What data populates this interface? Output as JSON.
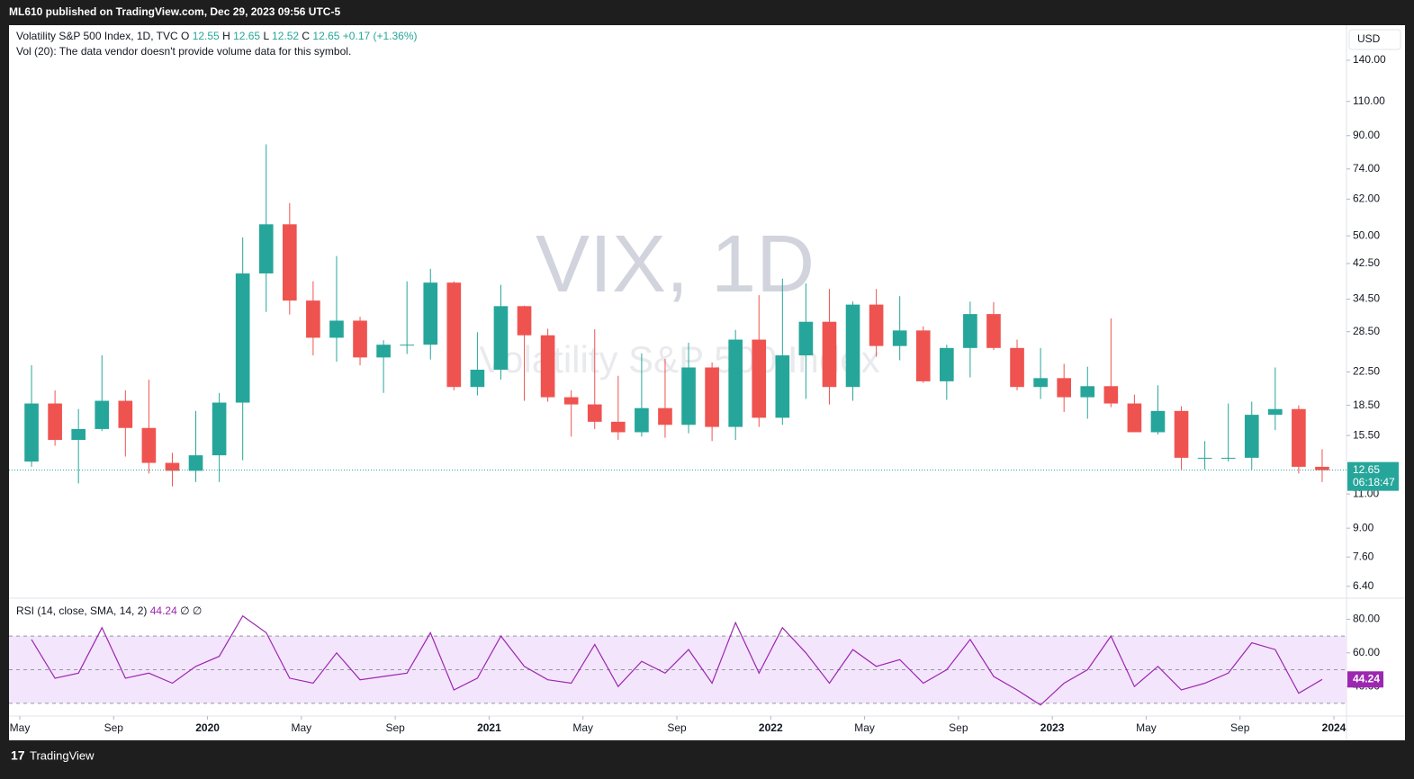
{
  "header": {
    "text": "ML610 published on TradingView.com, Dec 29, 2023 09:56 UTC-5"
  },
  "footer": {
    "brand": "TradingView"
  },
  "chart_data": [
    {
      "type": "candlestick",
      "title": "Volatility S&P 500 Index, 1D, TVC",
      "watermark": "VIX, 1D",
      "watermark_subtitle": "Volatility S&P 500 Index",
      "legend": {
        "o_label": "O",
        "open": 12.55,
        "h_label": "H",
        "high": 12.65,
        "l_label": "L",
        "low": 12.52,
        "c_label": "C",
        "close": 12.65,
        "change": "+0.17 (+1.36%)"
      },
      "note": "Vol (20): The data vendor doesn't provide volume data for this symbol.",
      "currency": "USD",
      "last_price": 12.65,
      "countdown": "06:18:47",
      "up_color": "#26a69a",
      "down_color": "#ef5350",
      "log_scale": true,
      "x": [
        "2019-05",
        "2019-06",
        "2019-07",
        "2019-08",
        "2019-09",
        "2019-10",
        "2019-11",
        "2019-12",
        "2020-01",
        "2020-02",
        "2020-03",
        "2020-04",
        "2020-05",
        "2020-06",
        "2020-07",
        "2020-08",
        "2020-09",
        "2020-10",
        "2020-11",
        "2020-12",
        "2021-01",
        "2021-02",
        "2021-03",
        "2021-04",
        "2021-05",
        "2021-06",
        "2021-07",
        "2021-08",
        "2021-09",
        "2021-10",
        "2021-11",
        "2021-12",
        "2022-01",
        "2022-02",
        "2022-03",
        "2022-04",
        "2022-05",
        "2022-06",
        "2022-07",
        "2022-08",
        "2022-09",
        "2022-10",
        "2022-11",
        "2022-12",
        "2023-01",
        "2023-02",
        "2023-03",
        "2023-04",
        "2023-05",
        "2023-06",
        "2023-07",
        "2023-08",
        "2023-09",
        "2023-10",
        "2023-11",
        "2023-12"
      ],
      "open": [
        13.3,
        18.7,
        15.1,
        16.1,
        19.0,
        16.2,
        13.2,
        12.6,
        13.8,
        18.8,
        40.1,
        53.5,
        34.2,
        27.5,
        30.4,
        24.5,
        26.4,
        26.4,
        38.0,
        20.6,
        22.8,
        33.1,
        27.9,
        19.4,
        18.6,
        16.8,
        15.8,
        18.2,
        16.5,
        23.1,
        16.3,
        27.2,
        17.2,
        24.8,
        30.2,
        20.6,
        33.4,
        26.2,
        28.7,
        21.3,
        25.9,
        31.6,
        25.9,
        20.6,
        21.7,
        19.4,
        20.7,
        18.7,
        15.8,
        17.9,
        13.6,
        13.6,
        13.6,
        17.5,
        18.1,
        12.9
      ],
      "high": [
        23.4,
        20.2,
        18.1,
        24.8,
        20.2,
        21.5,
        14.0,
        17.9,
        19.9,
        49.5,
        85.5,
        60.6,
        38.3,
        44.4,
        31.1,
        27.1,
        38.3,
        41.2,
        38.3,
        28.4,
        37.5,
        33.2,
        29.0,
        20.2,
        28.9,
        22.0,
        25.1,
        24.3,
        26.7,
        23.8,
        28.8,
        35.3,
        38.9,
        37.8,
        36.6,
        34.0,
        36.6,
        35.1,
        29.4,
        26.4,
        34.0,
        33.9,
        27.2,
        25.9,
        23.6,
        23.2,
        30.8,
        19.7,
        20.8,
        18.4,
        15.0,
        18.7,
        18.9,
        23.1,
        18.5,
        14.3
      ],
      "low": [
        12.9,
        14.6,
        11.7,
        15.9,
        13.7,
        12.4,
        11.5,
        11.8,
        11.8,
        13.4,
        32.0,
        31.5,
        24.8,
        23.9,
        23.4,
        19.9,
        25.0,
        24.2,
        20.2,
        19.6,
        21.5,
        19.0,
        18.9,
        15.4,
        16.1,
        15.1,
        15.4,
        15.3,
        15.7,
        15.0,
        15.1,
        16.3,
        16.5,
        19.2,
        18.6,
        19.0,
        24.6,
        24.1,
        21.1,
        19.1,
        21.8,
        25.6,
        20.2,
        19.2,
        17.8,
        17.1,
        18.3,
        15.8,
        15.6,
        12.7,
        12.7,
        13.3,
        12.7,
        16.0,
        12.4,
        11.8
      ],
      "close": [
        18.7,
        15.1,
        16.1,
        19.0,
        16.2,
        13.2,
        12.6,
        13.8,
        18.8,
        40.1,
        53.5,
        34.2,
        27.5,
        30.4,
        24.5,
        26.4,
        26.4,
        38.0,
        20.6,
        22.8,
        33.1,
        27.9,
        19.4,
        18.6,
        16.8,
        15.8,
        18.2,
        16.5,
        23.1,
        16.3,
        27.2,
        17.2,
        24.8,
        30.2,
        20.6,
        33.4,
        26.2,
        28.7,
        21.3,
        25.9,
        31.6,
        25.9,
        20.6,
        21.7,
        19.4,
        20.7,
        18.7,
        15.8,
        17.9,
        13.6,
        13.6,
        13.6,
        17.5,
        18.1,
        12.9,
        12.65
      ],
      "ylim": [
        6,
        172
      ],
      "yticks": [
        {
          "value": 140,
          "label": "140.00"
        },
        {
          "value": 110,
          "label": "110.00"
        },
        {
          "value": 90,
          "label": "90.00"
        },
        {
          "value": 74,
          "label": "74.00"
        },
        {
          "value": 62,
          "label": "62.00"
        },
        {
          "value": 50,
          "label": "50.00"
        },
        {
          "value": 42.5,
          "label": "42.50"
        },
        {
          "value": 34.5,
          "label": "34.50"
        },
        {
          "value": 28.5,
          "label": "28.50"
        },
        {
          "value": 22.5,
          "label": "22.50"
        },
        {
          "value": 18.5,
          "label": "18.50"
        },
        {
          "value": 15.5,
          "label": "15.50"
        },
        {
          "value": 11,
          "label": "11.00"
        },
        {
          "value": 9,
          "label": "9.00"
        },
        {
          "value": 7.6,
          "label": "7.60"
        },
        {
          "value": 6.4,
          "label": "6.40"
        }
      ],
      "xlim": [
        "2019-05",
        "2024-01"
      ],
      "xticks": [
        {
          "value": "2019-05",
          "label": "May"
        },
        {
          "value": "2019-09",
          "label": "Sep"
        },
        {
          "value": "2020-01",
          "label": "2020"
        },
        {
          "value": "2020-05",
          "label": "May"
        },
        {
          "value": "2020-09",
          "label": "Sep"
        },
        {
          "value": "2021-01",
          "label": "2021"
        },
        {
          "value": "2021-05",
          "label": "May"
        },
        {
          "value": "2021-09",
          "label": "Sep"
        },
        {
          "value": "2022-01",
          "label": "2022"
        },
        {
          "value": "2022-05",
          "label": "May"
        },
        {
          "value": "2022-09",
          "label": "Sep"
        },
        {
          "value": "2023-01",
          "label": "2023"
        },
        {
          "value": "2023-05",
          "label": "May"
        },
        {
          "value": "2023-09",
          "label": "Sep"
        },
        {
          "value": "2024-01",
          "label": "2024"
        }
      ]
    },
    {
      "type": "line",
      "title": "RSI (14, close, SMA, 14, 2)",
      "last_value": 44.24,
      "extra": "∅ ∅",
      "color": "#9c27b0",
      "band_color": "#f3e5fc",
      "band": [
        30,
        70
      ],
      "midline": 50,
      "values": [
        68,
        45,
        48,
        75,
        45,
        48,
        42,
        52,
        58,
        82,
        72,
        45,
        42,
        60,
        44,
        46,
        48,
        72,
        38,
        45,
        70,
        52,
        44,
        42,
        65,
        40,
        55,
        48,
        62,
        42,
        78,
        48,
        75,
        60,
        42,
        62,
        52,
        56,
        42,
        50,
        68,
        46,
        38,
        29,
        42,
        50,
        70,
        40,
        52,
        38,
        42,
        48,
        66,
        62,
        36,
        44.24
      ],
      "ylim": [
        23,
        92
      ],
      "yticks": [
        {
          "value": 80,
          "label": "80.00"
        },
        {
          "value": 60,
          "label": "60.00"
        },
        {
          "value": 40,
          "label": "40.00"
        }
      ]
    }
  ]
}
